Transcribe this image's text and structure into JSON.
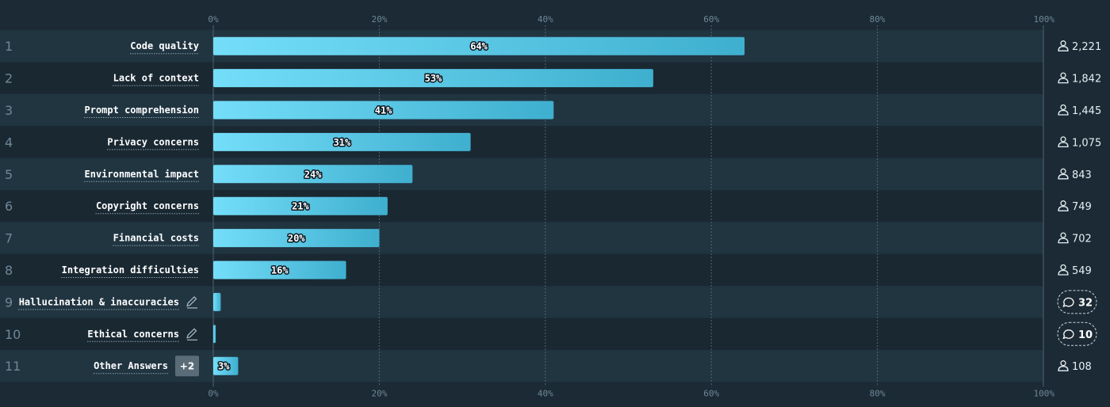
{
  "chart_data": {
    "type": "bar",
    "orientation": "horizontal",
    "xlim": [
      0,
      100
    ],
    "x_ticks": [
      "0%",
      "20%",
      "40%",
      "60%",
      "80%",
      "100%"
    ],
    "grid": true,
    "rows": [
      {
        "rank": "1",
        "label": "Code quality",
        "value": 64,
        "value_label": "64%",
        "count": "2,221",
        "count_type": "respondents"
      },
      {
        "rank": "2",
        "label": "Lack of context",
        "value": 53,
        "value_label": "53%",
        "count": "1,842",
        "count_type": "respondents"
      },
      {
        "rank": "3",
        "label": "Prompt comprehension",
        "value": 41,
        "value_label": "41%",
        "count": "1,445",
        "count_type": "respondents"
      },
      {
        "rank": "4",
        "label": "Privacy concerns",
        "value": 31,
        "value_label": "31%",
        "count": "1,075",
        "count_type": "respondents"
      },
      {
        "rank": "5",
        "label": "Environmental impact",
        "value": 24,
        "value_label": "24%",
        "count": "843",
        "count_type": "respondents"
      },
      {
        "rank": "6",
        "label": "Copyright concerns",
        "value": 21,
        "value_label": "21%",
        "count": "749",
        "count_type": "respondents"
      },
      {
        "rank": "7",
        "label": "Financial costs",
        "value": 20,
        "value_label": "20%",
        "count": "702",
        "count_type": "respondents"
      },
      {
        "rank": "8",
        "label": "Integration difficulties",
        "value": 16,
        "value_label": "16%",
        "count": "549",
        "count_type": "respondents"
      },
      {
        "rank": "9",
        "label": "Hallucination & inaccuracies",
        "value": 0.9,
        "value_label": "",
        "count": "32",
        "count_type": "comments",
        "editable": true
      },
      {
        "rank": "10",
        "label": "Ethical concerns",
        "value": 0.3,
        "value_label": "",
        "count": "10",
        "count_type": "comments",
        "editable": true
      },
      {
        "rank": "11",
        "label": "Other Answers",
        "value": 3,
        "value_label": "3%",
        "count": "108",
        "count_type": "respondents",
        "more": "+2"
      }
    ]
  },
  "colors": {
    "background": "#1b2a35",
    "band_even": "#213541",
    "band_odd": "#1a2832",
    "bar_start": "#74def9",
    "bar_end": "#3fafcf",
    "grid": "#4f6572",
    "muted_text": "#6f8796"
  },
  "icons": {
    "respondents": "person-icon",
    "comments": "speech-bubble-icon",
    "editable": "pencil-icon"
  }
}
